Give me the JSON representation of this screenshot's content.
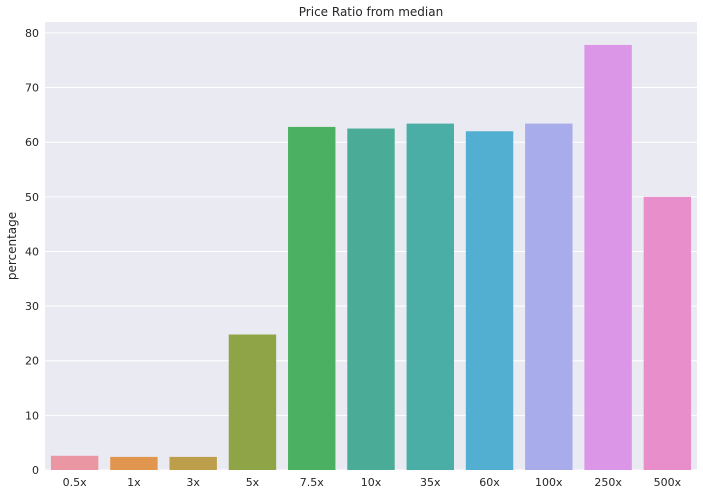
{
  "chart_data": {
    "type": "bar",
    "title": "Price Ratio from median",
    "xlabel": "",
    "ylabel": "percentage",
    "categories": [
      "0.5x",
      "1x",
      "3x",
      "5x",
      "7.5x",
      "10x",
      "35x",
      "60x",
      "100x",
      "250x",
      "500x"
    ],
    "values": [
      2.6,
      2.4,
      2.4,
      24.8,
      62.8,
      62.5,
      63.4,
      62.0,
      63.4,
      77.8,
      50.0
    ],
    "colors": [
      "#ea96a3",
      "#e0964e",
      "#bd9e4a",
      "#8fa446",
      "#4bb062",
      "#4aab97",
      "#4aada6",
      "#52afd1",
      "#a8aceb",
      "#db96e8",
      "#e88ecb"
    ],
    "ylim": [
      0,
      82
    ],
    "yticks": [
      0,
      10,
      20,
      30,
      40,
      50,
      60,
      70,
      80
    ],
    "grid": true,
    "background": "#eaeaf2"
  }
}
